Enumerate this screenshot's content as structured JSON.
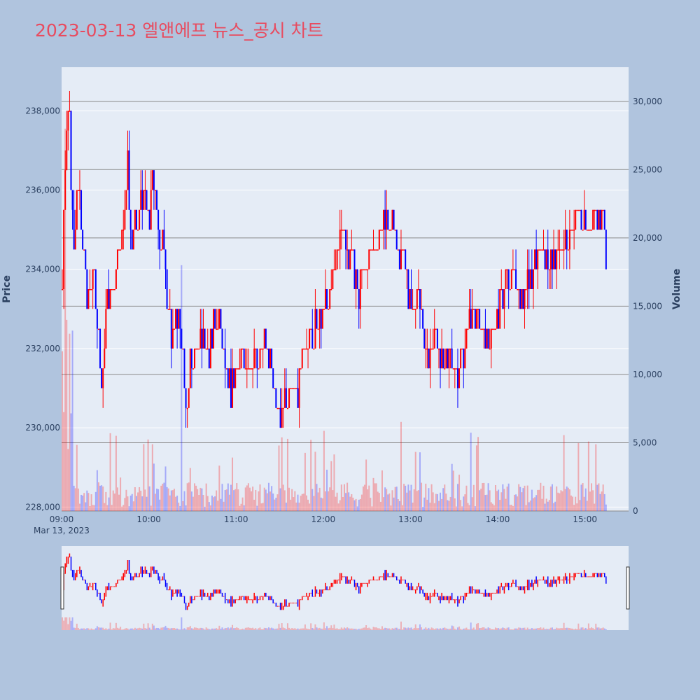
{
  "title": "2023-03-13 엘앤에프 뉴스_공시 차트",
  "colors": {
    "up": "#ff0000",
    "down": "#0000ff",
    "plot_bg": "#e5ecf6",
    "paper_bg": "#b0c4de",
    "title": "#e84b5f"
  },
  "chart_data": {
    "type": "candlestick",
    "title": "2023-03-13 엘앤에프 뉴스_공시 차트",
    "ylabel": "Price",
    "y2label": "Volume",
    "ylim": [
      227900,
      239100
    ],
    "y2lim": [
      0,
      32500
    ],
    "y_ticks": [
      "228,000",
      "230,000",
      "232,000",
      "234,000",
      "236,000",
      "238,000"
    ],
    "y_tick_values": [
      228000,
      230000,
      232000,
      234000,
      236000,
      238000
    ],
    "y2_ticks": [
      "0",
      "5,000",
      "10,000",
      "15,000",
      "20,000",
      "25,000",
      "30,000"
    ],
    "y2_tick_values": [
      0,
      5000,
      10000,
      15000,
      20000,
      25000,
      30000
    ],
    "x_ticks": [
      "09:00",
      "10:00",
      "11:00",
      "12:00",
      "13:00",
      "14:00",
      "15:00"
    ],
    "x_tick_minutes": [
      0,
      60,
      120,
      180,
      240,
      300,
      360
    ],
    "x_date_label": "Mar 13, 2023",
    "xlim_minutes": [
      0,
      390
    ],
    "close_path": [
      [
        0,
        234000
      ],
      [
        2,
        236500
      ],
      [
        4,
        237500
      ],
      [
        5,
        238000
      ],
      [
        6,
        236000
      ],
      [
        8,
        234500
      ],
      [
        10,
        235500
      ],
      [
        12,
        236000
      ],
      [
        14,
        234500
      ],
      [
        18,
        233000
      ],
      [
        22,
        234000
      ],
      [
        25,
        232500
      ],
      [
        27,
        231000
      ],
      [
        30,
        233000
      ],
      [
        34,
        233500
      ],
      [
        38,
        234000
      ],
      [
        42,
        235000
      ],
      [
        45,
        236500
      ],
      [
        48,
        234500
      ],
      [
        52,
        235500
      ],
      [
        56,
        236000
      ],
      [
        60,
        235000
      ],
      [
        62,
        236500
      ],
      [
        66,
        235000
      ],
      [
        70,
        234500
      ],
      [
        72,
        233000
      ],
      [
        75,
        232500
      ],
      [
        80,
        232800
      ],
      [
        82,
        232000
      ],
      [
        84,
        231000
      ],
      [
        86,
        230500
      ],
      [
        88,
        231500
      ],
      [
        92,
        231800
      ],
      [
        96,
        232000
      ],
      [
        100,
        231800
      ],
      [
        104,
        232500
      ],
      [
        108,
        232800
      ],
      [
        112,
        231800
      ],
      [
        116,
        231000
      ],
      [
        120,
        231500
      ],
      [
        124,
        232000
      ],
      [
        128,
        231500
      ],
      [
        134,
        231800
      ],
      [
        140,
        232000
      ],
      [
        144,
        231500
      ],
      [
        146,
        230800
      ],
      [
        150,
        230500
      ],
      [
        154,
        230800
      ],
      [
        158,
        231200
      ],
      [
        162,
        231000
      ],
      [
        166,
        231800
      ],
      [
        170,
        232300
      ],
      [
        175,
        232500
      ],
      [
        180,
        233000
      ],
      [
        185,
        233500
      ],
      [
        189,
        234500
      ],
      [
        192,
        235000
      ],
      [
        196,
        234500
      ],
      [
        200,
        234000
      ],
      [
        204,
        233500
      ],
      [
        208,
        234000
      ],
      [
        212,
        234500
      ],
      [
        216,
        234800
      ],
      [
        220,
        235000
      ],
      [
        224,
        235200
      ],
      [
        228,
        235000
      ],
      [
        232,
        234500
      ],
      [
        236,
        234000
      ],
      [
        240,
        233000
      ],
      [
        244,
        233300
      ],
      [
        248,
        232500
      ],
      [
        252,
        232000
      ],
      [
        256,
        232200
      ],
      [
        260,
        231800
      ],
      [
        264,
        231500
      ],
      [
        268,
        231800
      ],
      [
        272,
        231300
      ],
      [
        276,
        232000
      ],
      [
        280,
        232800
      ],
      [
        284,
        232800
      ],
      [
        288,
        232500
      ],
      [
        292,
        232200
      ],
      [
        296,
        232500
      ],
      [
        300,
        233000
      ],
      [
        304,
        233500
      ],
      [
        308,
        233800
      ],
      [
        312,
        233600
      ],
      [
        316,
        233300
      ],
      [
        320,
        233800
      ],
      [
        324,
        234000
      ],
      [
        328,
        234200
      ],
      [
        332,
        234500
      ],
      [
        336,
        234200
      ],
      [
        340,
        234300
      ],
      [
        344,
        234400
      ],
      [
        348,
        234600
      ],
      [
        352,
        235000
      ],
      [
        356,
        235300
      ],
      [
        360,
        235000
      ],
      [
        364,
        235200
      ],
      [
        368,
        235400
      ],
      [
        372,
        235300
      ],
      [
        374,
        234500
      ]
    ]
  }
}
